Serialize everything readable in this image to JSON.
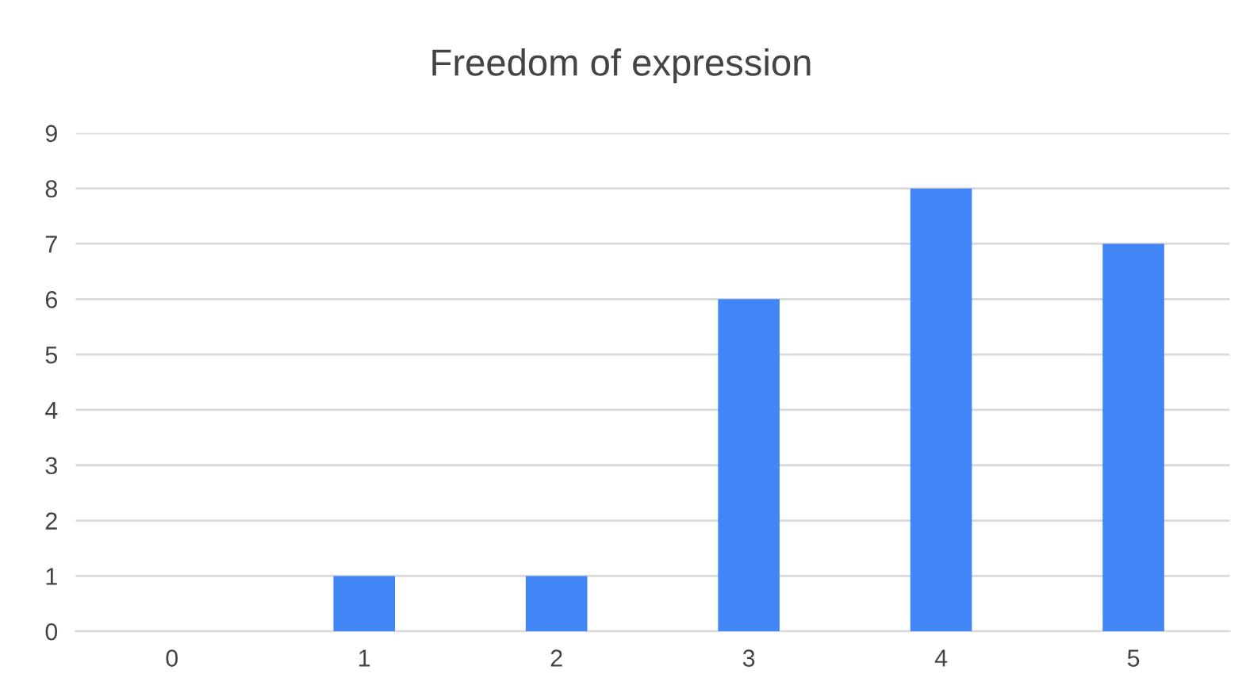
{
  "chart_data": {
    "type": "bar",
    "title": "Freedom of expression",
    "categories": [
      "0",
      "1",
      "2",
      "3",
      "4",
      "5"
    ],
    "values": [
      0,
      1,
      1,
      6,
      8,
      7
    ],
    "color": "#4285f4",
    "ylim": [
      0,
      9
    ],
    "yticks": [
      0,
      1,
      2,
      3,
      4,
      5,
      6,
      7,
      8,
      9
    ],
    "grid": "y",
    "legend": false
  }
}
